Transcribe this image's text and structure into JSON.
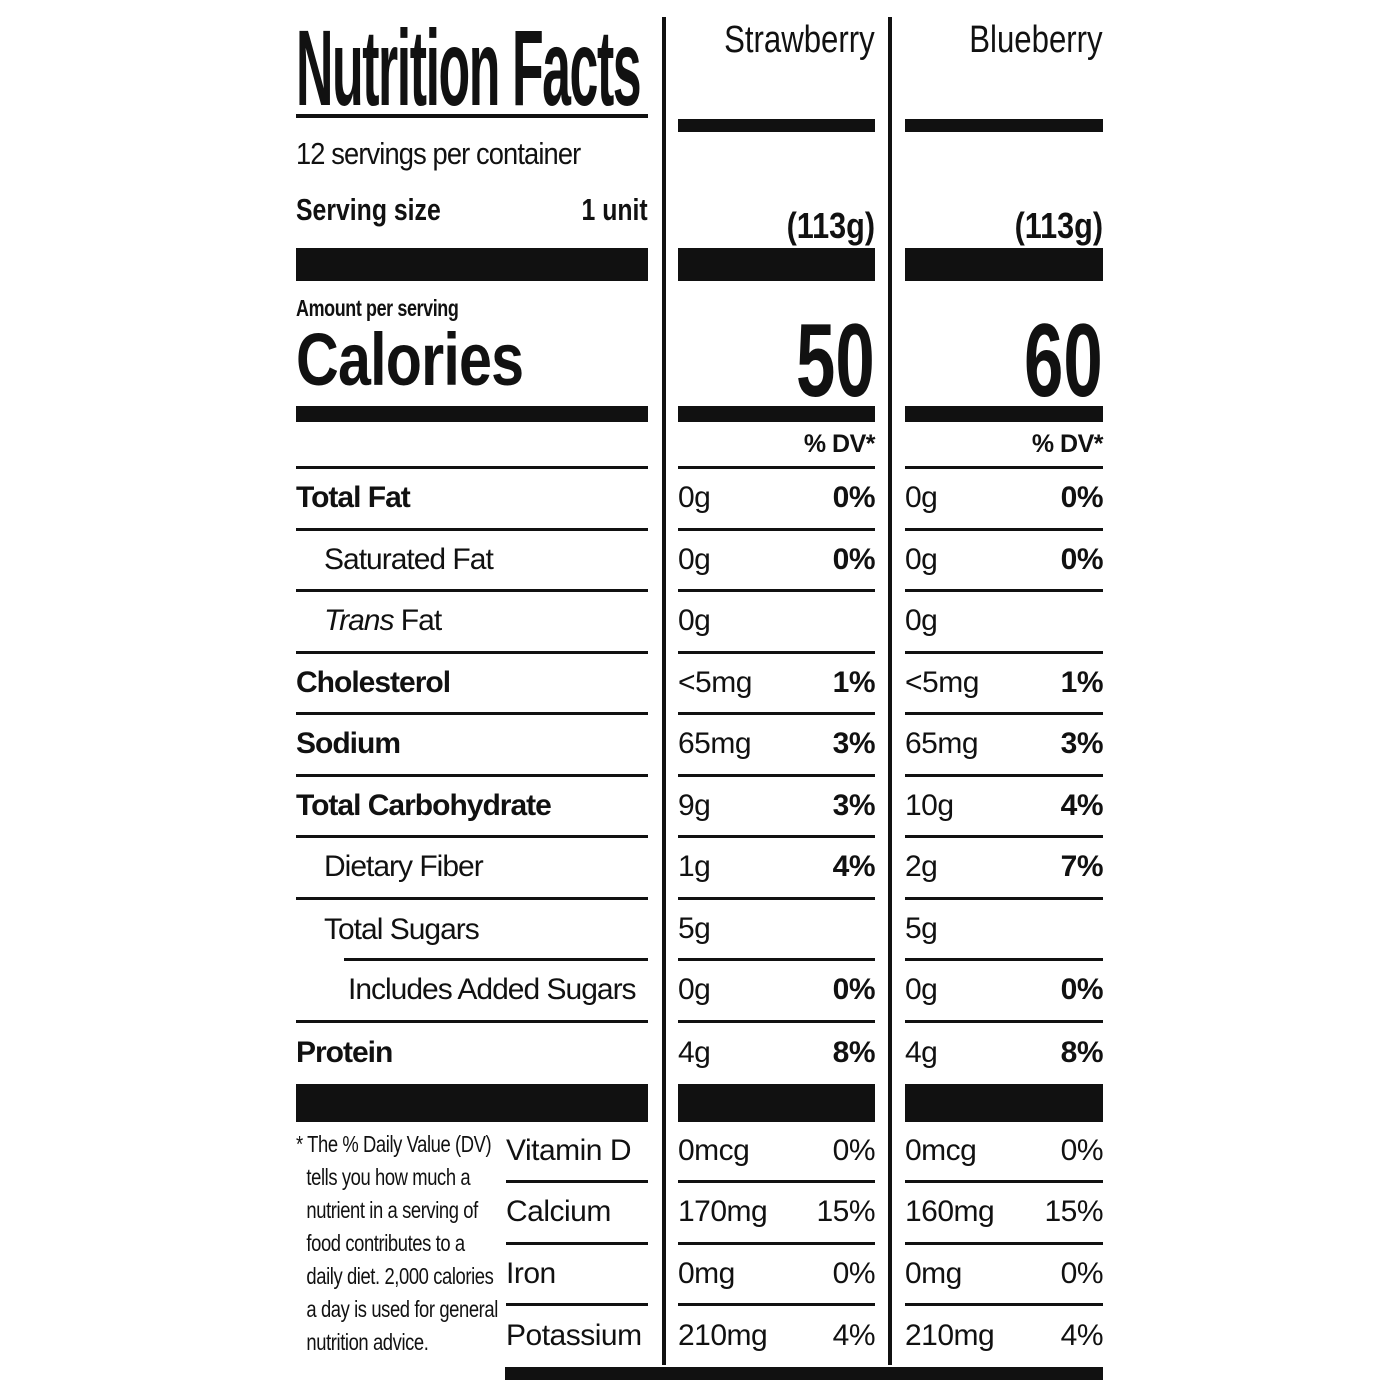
{
  "label": {
    "title": "Nutrition Facts",
    "servings_per_container": "12 servings per container",
    "serving_size_label": "Serving size",
    "serving_size_value": "1 unit",
    "amount_per_serving": "Amount per serving",
    "calories_label": "Calories",
    "dv_header": "% DV*",
    "ink_color": "#111111",
    "background_color": "#ffffff",
    "columns": [
      {
        "name": "Strawberry",
        "serving_weight": "(113g)",
        "calories": "50"
      },
      {
        "name": "Blueberry",
        "serving_weight": "(113g)",
        "calories": "60"
      }
    ],
    "rows": [
      {
        "name": "total-fat",
        "label": "Total Fat",
        "bold": true,
        "indent": 0,
        "rule": "full",
        "cols": [
          {
            "amount": "0g",
            "dv": "0%"
          },
          {
            "amount": "0g",
            "dv": "0%"
          }
        ]
      },
      {
        "name": "saturated-fat",
        "label": "Saturated Fat",
        "bold": false,
        "indent": 1,
        "rule": "full",
        "cols": [
          {
            "amount": "0g",
            "dv": "0%"
          },
          {
            "amount": "0g",
            "dv": "0%"
          }
        ]
      },
      {
        "name": "trans-fat",
        "label_italic": "Trans",
        "label": " Fat",
        "bold": false,
        "indent": 1,
        "rule": "full",
        "cols": [
          {
            "amount": "0g",
            "dv": null
          },
          {
            "amount": "0g",
            "dv": null
          }
        ]
      },
      {
        "name": "cholesterol",
        "label": "Cholesterol",
        "bold": true,
        "indent": 0,
        "rule": "full",
        "cols": [
          {
            "amount": "<5mg",
            "dv": "1%"
          },
          {
            "amount": "<5mg",
            "dv": "1%"
          }
        ]
      },
      {
        "name": "sodium",
        "label": "Sodium",
        "bold": true,
        "indent": 0,
        "rule": "full",
        "cols": [
          {
            "amount": "65mg",
            "dv": "3%"
          },
          {
            "amount": "65mg",
            "dv": "3%"
          }
        ]
      },
      {
        "name": "total-carbohydrate",
        "label": "Total Carbohydrate",
        "bold": true,
        "indent": 0,
        "rule": "full",
        "cols": [
          {
            "amount": "9g",
            "dv": "3%"
          },
          {
            "amount": "10g",
            "dv": "4%"
          }
        ]
      },
      {
        "name": "dietary-fiber",
        "label": "Dietary Fiber",
        "bold": false,
        "indent": 1,
        "rule": "full",
        "cols": [
          {
            "amount": "1g",
            "dv": "4%"
          },
          {
            "amount": "2g",
            "dv": "7%"
          }
        ]
      },
      {
        "name": "total-sugars",
        "label": "Total Sugars",
        "bold": false,
        "indent": 1,
        "rule": "indented",
        "cols": [
          {
            "amount": "5g",
            "dv": null
          },
          {
            "amount": "5g",
            "dv": null
          }
        ]
      },
      {
        "name": "includes-added-sugars",
        "label": "Includes Added Sugars",
        "bold": false,
        "indent": 2,
        "rule": "full",
        "cols": [
          {
            "amount": "0g",
            "dv": "0%"
          },
          {
            "amount": "0g",
            "dv": "0%"
          }
        ]
      },
      {
        "name": "protein",
        "label": "Protein",
        "bold": true,
        "indent": 0,
        "rule": "none",
        "cols": [
          {
            "amount": "4g",
            "dv": "8%"
          },
          {
            "amount": "4g",
            "dv": "8%"
          }
        ]
      }
    ],
    "vitamins": [
      {
        "name": "vitamin-d",
        "label": "Vitamin D",
        "rule": true,
        "cols": [
          {
            "amount": "0mcg",
            "dv": "0%"
          },
          {
            "amount": "0mcg",
            "dv": "0%"
          }
        ]
      },
      {
        "name": "calcium",
        "label": "Calcium",
        "rule": true,
        "cols": [
          {
            "amount": "170mg",
            "dv": "15%"
          },
          {
            "amount": "160mg",
            "dv": "15%"
          }
        ]
      },
      {
        "name": "iron",
        "label": "Iron",
        "rule": true,
        "cols": [
          {
            "amount": "0mg",
            "dv": "0%"
          },
          {
            "amount": "0mg",
            "dv": "0%"
          }
        ]
      },
      {
        "name": "potassium",
        "label": "Potassium",
        "rule": false,
        "cols": [
          {
            "amount": "210mg",
            "dv": "4%"
          },
          {
            "amount": "210mg",
            "dv": "4%"
          }
        ]
      }
    ],
    "footnote_lines": [
      "* The % Daily Value (DV)",
      "tells you how much a",
      "nutrient in a serving of",
      "food contributes to a",
      "daily diet. 2,000 calories",
      "a day is used for general",
      "nutrition advice."
    ]
  }
}
